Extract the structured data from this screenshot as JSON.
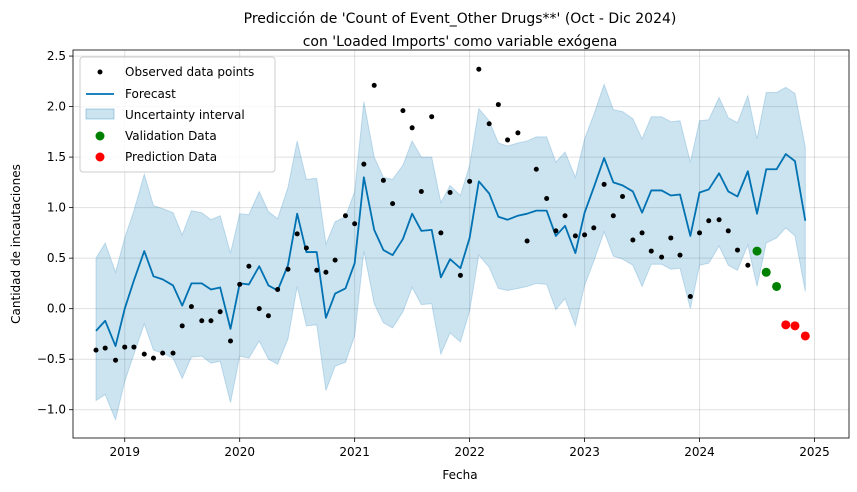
{
  "chart_data": {
    "type": "line",
    "title_line1": "Predicción de 'Count of Event_Other Drugs**' (Oct - Dic 2024)",
    "title_line2": "con 'Loaded Imports' como variable exógena",
    "xlabel": "Fecha",
    "ylabel": "Cantidad de incautaciones",
    "xlim": [
      2018.55,
      2025.3
    ],
    "ylim": [
      -1.28,
      2.56
    ],
    "x_ticks": [
      {
        "value": 2019,
        "label": "2019"
      },
      {
        "value": 2020,
        "label": "2020"
      },
      {
        "value": 2021,
        "label": "2021"
      },
      {
        "value": 2022,
        "label": "2022"
      },
      {
        "value": 2023,
        "label": "2023"
      },
      {
        "value": 2024,
        "label": "2024"
      },
      {
        "value": 2025,
        "label": "2025"
      }
    ],
    "y_ticks": [
      {
        "value": -1.0,
        "label": "−1.0"
      },
      {
        "value": -0.5,
        "label": "−0.5"
      },
      {
        "value": 0.0,
        "label": "0.0"
      },
      {
        "value": 0.5,
        "label": "0.5"
      },
      {
        "value": 1.0,
        "label": "1.0"
      },
      {
        "value": 1.5,
        "label": "1.5"
      },
      {
        "value": 2.0,
        "label": "2.0"
      },
      {
        "value": 2.5,
        "label": "2.5"
      }
    ],
    "grid": true,
    "legend_position": "top-left",
    "colors": {
      "observed": "#000000",
      "forecast": "#0072B2",
      "uncertainty": "#0072B2",
      "validation": "#008000",
      "prediction": "#ff0000"
    },
    "legend": [
      {
        "key": "observed",
        "label": "Observed data points"
      },
      {
        "key": "forecast",
        "label": "Forecast"
      },
      {
        "key": "uncertainty",
        "label": "Uncertainty interval"
      },
      {
        "key": "validation",
        "label": "Validation Data"
      },
      {
        "key": "prediction",
        "label": "Prediction Data"
      }
    ],
    "observed": [
      [
        2018.75,
        -0.41
      ],
      [
        2018.83,
        -0.39
      ],
      [
        2018.92,
        -0.51
      ],
      [
        2019.0,
        -0.38
      ],
      [
        2019.08,
        -0.38
      ],
      [
        2019.17,
        -0.45
      ],
      [
        2019.25,
        -0.49
      ],
      [
        2019.33,
        -0.44
      ],
      [
        2019.42,
        -0.44
      ],
      [
        2019.5,
        -0.17
      ],
      [
        2019.58,
        0.02
      ],
      [
        2019.67,
        -0.12
      ],
      [
        2019.75,
        -0.12
      ],
      [
        2019.83,
        -0.03
      ],
      [
        2019.92,
        -0.32
      ],
      [
        2020.0,
        0.24
      ],
      [
        2020.08,
        0.42
      ],
      [
        2020.17,
        0.0
      ],
      [
        2020.25,
        -0.07
      ],
      [
        2020.33,
        0.19
      ],
      [
        2020.42,
        0.39
      ],
      [
        2020.5,
        0.74
      ],
      [
        2020.58,
        0.6
      ],
      [
        2020.67,
        0.38
      ],
      [
        2020.75,
        0.36
      ],
      [
        2020.83,
        0.48
      ],
      [
        2020.92,
        0.92
      ],
      [
        2021.0,
        0.84
      ],
      [
        2021.08,
        1.43
      ],
      [
        2021.17,
        2.21
      ],
      [
        2021.25,
        1.27
      ],
      [
        2021.33,
        1.04
      ],
      [
        2021.42,
        1.96
      ],
      [
        2021.5,
        1.79
      ],
      [
        2021.58,
        1.16
      ],
      [
        2021.67,
        1.9
      ],
      [
        2021.75,
        0.75
      ],
      [
        2021.83,
        1.15
      ],
      [
        2021.92,
        0.33
      ],
      [
        2022.0,
        1.26
      ],
      [
        2022.08,
        2.37
      ],
      [
        2022.17,
        1.83
      ],
      [
        2022.25,
        2.02
      ],
      [
        2022.33,
        1.67
      ],
      [
        2022.42,
        1.74
      ],
      [
        2022.5,
        0.67
      ],
      [
        2022.58,
        1.38
      ],
      [
        2022.67,
        1.09
      ],
      [
        2022.75,
        0.77
      ],
      [
        2022.83,
        0.92
      ],
      [
        2022.92,
        0.72
      ],
      [
        2023.0,
        0.73
      ],
      [
        2023.08,
        0.8
      ],
      [
        2023.17,
        1.23
      ],
      [
        2023.25,
        0.92
      ],
      [
        2023.33,
        1.11
      ],
      [
        2023.42,
        0.68
      ],
      [
        2023.5,
        0.75
      ],
      [
        2023.58,
        0.57
      ],
      [
        2023.67,
        0.51
      ],
      [
        2023.75,
        0.7
      ],
      [
        2023.83,
        0.53
      ],
      [
        2023.92,
        0.12
      ],
      [
        2024.0,
        0.75
      ],
      [
        2024.08,
        0.87
      ],
      [
        2024.17,
        0.88
      ],
      [
        2024.25,
        0.77
      ],
      [
        2024.33,
        0.58
      ],
      [
        2024.42,
        0.43
      ]
    ],
    "forecast": [
      [
        2018.75,
        -0.22
      ],
      [
        2018.83,
        -0.12
      ],
      [
        2018.92,
        -0.37
      ],
      [
        2019.0,
        0.0
      ],
      [
        2019.08,
        0.28
      ],
      [
        2019.17,
        0.57
      ],
      [
        2019.25,
        0.32
      ],
      [
        2019.33,
        0.29
      ],
      [
        2019.42,
        0.23
      ],
      [
        2019.5,
        0.03
      ],
      [
        2019.58,
        0.25
      ],
      [
        2019.67,
        0.25
      ],
      [
        2019.75,
        0.19
      ],
      [
        2019.83,
        0.21
      ],
      [
        2019.92,
        -0.2
      ],
      [
        2020.0,
        0.25
      ],
      [
        2020.08,
        0.24
      ],
      [
        2020.17,
        0.42
      ],
      [
        2020.25,
        0.23
      ],
      [
        2020.33,
        0.18
      ],
      [
        2020.42,
        0.43
      ],
      [
        2020.5,
        0.94
      ],
      [
        2020.58,
        0.56
      ],
      [
        2020.67,
        0.56
      ],
      [
        2020.75,
        -0.09
      ],
      [
        2020.83,
        0.15
      ],
      [
        2020.92,
        0.2
      ],
      [
        2021.0,
        0.45
      ],
      [
        2021.08,
        1.3
      ],
      [
        2021.17,
        0.78
      ],
      [
        2021.25,
        0.58
      ],
      [
        2021.33,
        0.53
      ],
      [
        2021.42,
        0.69
      ],
      [
        2021.5,
        0.94
      ],
      [
        2021.58,
        0.77
      ],
      [
        2021.67,
        0.78
      ],
      [
        2021.75,
        0.31
      ],
      [
        2021.83,
        0.49
      ],
      [
        2021.92,
        0.4
      ],
      [
        2022.0,
        0.7
      ],
      [
        2022.08,
        1.26
      ],
      [
        2022.17,
        1.14
      ],
      [
        2022.25,
        0.91
      ],
      [
        2022.33,
        0.88
      ],
      [
        2022.42,
        0.92
      ],
      [
        2022.5,
        0.94
      ],
      [
        2022.58,
        0.97
      ],
      [
        2022.67,
        0.97
      ],
      [
        2022.75,
        0.72
      ],
      [
        2022.83,
        0.82
      ],
      [
        2022.92,
        0.55
      ],
      [
        2023.0,
        0.95
      ],
      [
        2023.08,
        1.2
      ],
      [
        2023.17,
        1.49
      ],
      [
        2023.25,
        1.25
      ],
      [
        2023.33,
        1.22
      ],
      [
        2023.42,
        1.16
      ],
      [
        2023.5,
        0.95
      ],
      [
        2023.58,
        1.17
      ],
      [
        2023.67,
        1.17
      ],
      [
        2023.75,
        1.12
      ],
      [
        2023.83,
        1.13
      ],
      [
        2023.92,
        0.72
      ],
      [
        2024.0,
        1.15
      ],
      [
        2024.08,
        1.18
      ],
      [
        2024.17,
        1.34
      ],
      [
        2024.25,
        1.16
      ],
      [
        2024.33,
        1.11
      ],
      [
        2024.42,
        1.36
      ],
      [
        2024.5,
        0.94
      ],
      [
        2024.58,
        1.38
      ],
      [
        2024.67,
        1.38
      ],
      [
        2024.75,
        1.53
      ],
      [
        2024.83,
        1.46
      ],
      [
        2024.92,
        0.87
      ]
    ],
    "uncertainty_upper": [
      [
        2018.75,
        0.5
      ],
      [
        2018.83,
        0.65
      ],
      [
        2018.92,
        0.36
      ],
      [
        2019.0,
        0.7
      ],
      [
        2019.08,
        0.97
      ],
      [
        2019.17,
        1.33
      ],
      [
        2019.25,
        1.02
      ],
      [
        2019.33,
        0.99
      ],
      [
        2019.42,
        0.95
      ],
      [
        2019.5,
        0.73
      ],
      [
        2019.58,
        0.97
      ],
      [
        2019.67,
        0.95
      ],
      [
        2019.75,
        0.88
      ],
      [
        2019.83,
        0.92
      ],
      [
        2019.92,
        0.55
      ],
      [
        2020.0,
        0.94
      ],
      [
        2020.08,
        0.93
      ],
      [
        2020.17,
        1.16
      ],
      [
        2020.25,
        0.96
      ],
      [
        2020.33,
        0.89
      ],
      [
        2020.42,
        1.2
      ],
      [
        2020.5,
        1.66
      ],
      [
        2020.58,
        1.28
      ],
      [
        2020.67,
        1.29
      ],
      [
        2020.75,
        0.64
      ],
      [
        2020.83,
        0.86
      ],
      [
        2020.92,
        0.91
      ],
      [
        2021.0,
        1.16
      ],
      [
        2021.08,
        2.05
      ],
      [
        2021.17,
        1.5
      ],
      [
        2021.25,
        1.3
      ],
      [
        2021.33,
        1.28
      ],
      [
        2021.42,
        1.42
      ],
      [
        2021.5,
        1.66
      ],
      [
        2021.58,
        1.5
      ],
      [
        2021.67,
        1.5
      ],
      [
        2021.75,
        1.05
      ],
      [
        2021.83,
        1.22
      ],
      [
        2021.92,
        1.12
      ],
      [
        2022.0,
        1.42
      ],
      [
        2022.08,
        1.98
      ],
      [
        2022.17,
        1.86
      ],
      [
        2022.25,
        1.64
      ],
      [
        2022.33,
        1.61
      ],
      [
        2022.42,
        1.64
      ],
      [
        2022.5,
        1.66
      ],
      [
        2022.58,
        1.7
      ],
      [
        2022.67,
        1.7
      ],
      [
        2022.75,
        1.45
      ],
      [
        2022.83,
        1.55
      ],
      [
        2022.92,
        1.3
      ],
      [
        2023.0,
        1.68
      ],
      [
        2023.08,
        1.92
      ],
      [
        2023.17,
        2.22
      ],
      [
        2023.25,
        1.97
      ],
      [
        2023.33,
        1.95
      ],
      [
        2023.42,
        1.88
      ],
      [
        2023.5,
        1.68
      ],
      [
        2023.58,
        1.9
      ],
      [
        2023.67,
        1.9
      ],
      [
        2023.75,
        1.85
      ],
      [
        2023.83,
        1.86
      ],
      [
        2023.92,
        1.45
      ],
      [
        2024.0,
        1.86
      ],
      [
        2024.08,
        1.87
      ],
      [
        2024.17,
        2.09
      ],
      [
        2024.25,
        1.89
      ],
      [
        2024.33,
        1.84
      ],
      [
        2024.42,
        2.11
      ],
      [
        2024.5,
        1.68
      ],
      [
        2024.58,
        2.14
      ],
      [
        2024.67,
        2.14
      ],
      [
        2024.75,
        2.19
      ],
      [
        2024.83,
        2.13
      ],
      [
        2024.92,
        1.6
      ]
    ],
    "uncertainty_lower": [
      [
        2018.75,
        -0.91
      ],
      [
        2018.83,
        -0.85
      ],
      [
        2018.92,
        -1.1
      ],
      [
        2019.0,
        -0.72
      ],
      [
        2019.08,
        -0.45
      ],
      [
        2019.17,
        -0.15
      ],
      [
        2019.25,
        -0.41
      ],
      [
        2019.33,
        -0.44
      ],
      [
        2019.42,
        -0.49
      ],
      [
        2019.5,
        -0.69
      ],
      [
        2019.58,
        -0.48
      ],
      [
        2019.67,
        -0.47
      ],
      [
        2019.75,
        -0.54
      ],
      [
        2019.83,
        -0.52
      ],
      [
        2019.92,
        -0.93
      ],
      [
        2020.0,
        -0.47
      ],
      [
        2020.08,
        -0.49
      ],
      [
        2020.17,
        -0.32
      ],
      [
        2020.25,
        -0.5
      ],
      [
        2020.33,
        -0.55
      ],
      [
        2020.42,
        -0.3
      ],
      [
        2020.5,
        0.22
      ],
      [
        2020.58,
        -0.17
      ],
      [
        2020.67,
        -0.16
      ],
      [
        2020.75,
        -0.81
      ],
      [
        2020.83,
        -0.57
      ],
      [
        2020.92,
        -0.53
      ],
      [
        2021.0,
        -0.27
      ],
      [
        2021.08,
        0.57
      ],
      [
        2021.17,
        0.05
      ],
      [
        2021.25,
        -0.14
      ],
      [
        2021.33,
        -0.19
      ],
      [
        2021.42,
        -0.03
      ],
      [
        2021.5,
        0.21
      ],
      [
        2021.58,
        0.04
      ],
      [
        2021.67,
        0.05
      ],
      [
        2021.75,
        -0.45
      ],
      [
        2021.83,
        -0.24
      ],
      [
        2021.92,
        -0.33
      ],
      [
        2022.0,
        -0.02
      ],
      [
        2022.08,
        0.53
      ],
      [
        2022.17,
        0.41
      ],
      [
        2022.25,
        0.2
      ],
      [
        2022.33,
        0.18
      ],
      [
        2022.42,
        0.2
      ],
      [
        2022.5,
        0.22
      ],
      [
        2022.58,
        0.25
      ],
      [
        2022.67,
        0.24
      ],
      [
        2022.75,
        -0.01
      ],
      [
        2022.83,
        0.1
      ],
      [
        2022.92,
        -0.17
      ],
      [
        2023.0,
        0.23
      ],
      [
        2023.08,
        0.47
      ],
      [
        2023.17,
        0.76
      ],
      [
        2023.25,
        0.52
      ],
      [
        2023.33,
        0.49
      ],
      [
        2023.42,
        0.43
      ],
      [
        2023.5,
        0.22
      ],
      [
        2023.58,
        0.44
      ],
      [
        2023.67,
        0.44
      ],
      [
        2023.75,
        0.39
      ],
      [
        2023.83,
        0.4
      ],
      [
        2023.92,
        0.0
      ],
      [
        2024.0,
        0.43
      ],
      [
        2024.08,
        0.45
      ],
      [
        2024.17,
        0.62
      ],
      [
        2024.25,
        0.43
      ],
      [
        2024.33,
        0.38
      ],
      [
        2024.42,
        0.63
      ],
      [
        2024.5,
        0.22
      ],
      [
        2024.58,
        0.65
      ],
      [
        2024.67,
        0.7
      ],
      [
        2024.75,
        0.8
      ],
      [
        2024.83,
        0.72
      ],
      [
        2024.92,
        0.17
      ]
    ],
    "validation": [
      [
        2024.5,
        0.57
      ],
      [
        2024.58,
        0.36
      ],
      [
        2024.67,
        0.22
      ]
    ],
    "prediction": [
      [
        2024.75,
        -0.16
      ],
      [
        2024.83,
        -0.17
      ],
      [
        2024.92,
        -0.27
      ]
    ]
  }
}
